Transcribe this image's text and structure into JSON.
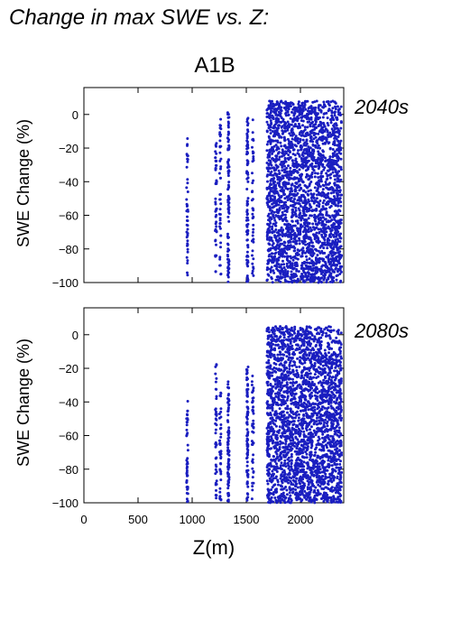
{
  "heading": "Change in max SWE vs. Z:",
  "colors": {
    "points": "#1a1ec0",
    "period_label": "#2a2ab0"
  },
  "chart_data": [
    {
      "type": "scatter",
      "title": "A1B",
      "period_label": "2040s",
      "xlabel": "",
      "ylabel": "SWE Change (%)",
      "xlim": [
        0,
        2400
      ],
      "ylim": [
        -100,
        16
      ],
      "yticks": [
        0,
        -20,
        -40,
        -60,
        -80,
        -100
      ],
      "xticks": [
        0,
        500,
        1000,
        1500,
        2000
      ],
      "x_ticklabels_shown": false,
      "series": [
        {
          "columns": [
            {
              "x": 955,
              "y_min": -96,
              "y_max": -14,
              "density": "sparse"
            },
            {
              "x": 1220,
              "y_min": -94,
              "y_max": -17,
              "density": "sparse"
            },
            {
              "x": 1260,
              "y_min": -98,
              "y_max": -2,
              "density": "sparse"
            },
            {
              "x": 1335,
              "y_min": -100,
              "y_max": 2,
              "density": "medium"
            },
            {
              "x": 1510,
              "y_min": -100,
              "y_max": -2,
              "density": "medium"
            },
            {
              "x": 1560,
              "y_min": -97,
              "y_max": 0,
              "density": "sparse"
            },
            {
              "x": 1690,
              "x_max": 2380,
              "y_min": -100,
              "y_max": 8,
              "density": "dense"
            }
          ]
        }
      ]
    },
    {
      "type": "scatter",
      "title": "",
      "period_label": "2080s",
      "xlabel": "Z(m)",
      "ylabel": "SWE Change (%)",
      "xlim": [
        0,
        2400
      ],
      "ylim": [
        -100,
        16
      ],
      "yticks": [
        0,
        -20,
        -40,
        -60,
        -80,
        -100
      ],
      "xticks": [
        0,
        500,
        1000,
        1500,
        2000
      ],
      "x_ticklabels_shown": true,
      "series": [
        {
          "columns": [
            {
              "x": 955,
              "y_min": -100,
              "y_max": -37,
              "density": "sparse"
            },
            {
              "x": 1220,
              "y_min": -100,
              "y_max": -15,
              "density": "sparse"
            },
            {
              "x": 1260,
              "y_min": -100,
              "y_max": -34,
              "density": "sparse"
            },
            {
              "x": 1335,
              "y_min": -100,
              "y_max": -28,
              "density": "medium"
            },
            {
              "x": 1510,
              "y_min": -100,
              "y_max": -18,
              "density": "medium"
            },
            {
              "x": 1560,
              "y_min": -100,
              "y_max": -20,
              "density": "sparse"
            },
            {
              "x": 1690,
              "x_max": 2380,
              "y_min": -100,
              "y_max": 5,
              "density": "dense"
            }
          ]
        }
      ]
    }
  ]
}
